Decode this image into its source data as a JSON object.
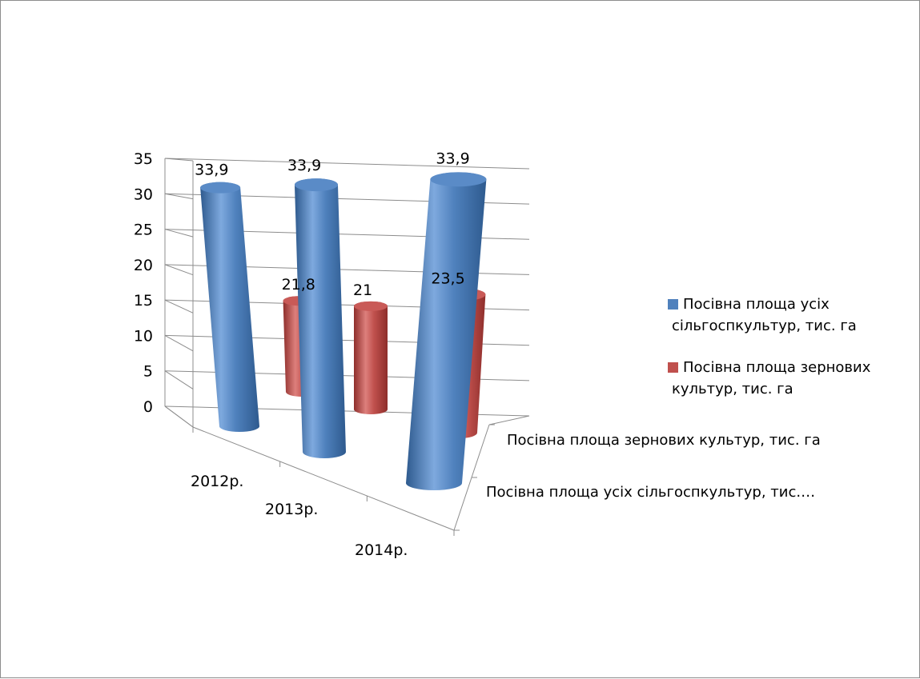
{
  "chart_data": {
    "type": "bar",
    "subtype": "3d-cylinder",
    "title": "",
    "categories": [
      "2012р.",
      "2013р.",
      "2014р."
    ],
    "series": [
      {
        "name": "Посівна площа усіх сільгоспкультур, тис. га",
        "values": [
          33.9,
          33.9,
          33.9
        ],
        "labels": [
          "33,9",
          "33,9",
          "33,9"
        ],
        "color": "#4f81bd"
      },
      {
        "name": "Посівна площа зернових культур, тис. га",
        "values": [
          21.8,
          21,
          23.5
        ],
        "labels": [
          "21,8",
          "21",
          "23,5"
        ],
        "color": "#c0504d"
      }
    ],
    "y_ticks": [
      "0",
      "5",
      "10",
      "15",
      "20",
      "25",
      "30",
      "35"
    ],
    "ylim": [
      0,
      35
    ],
    "depth_axis_labels": [
      "Посівна площа зернових культур, тис. га",
      "Посівна площа усіх сільгоспкультур, тис.…"
    ],
    "legend": {
      "position": "right",
      "items": [
        {
          "lines": [
            "Посівна площа усіх",
            "сільгоспкультур, тис. га"
          ],
          "color": "#4f81bd"
        },
        {
          "lines": [
            "Посівна площа зернових",
            "культур, тис. га"
          ],
          "color": "#c0504d"
        }
      ]
    },
    "gridlines": true
  }
}
